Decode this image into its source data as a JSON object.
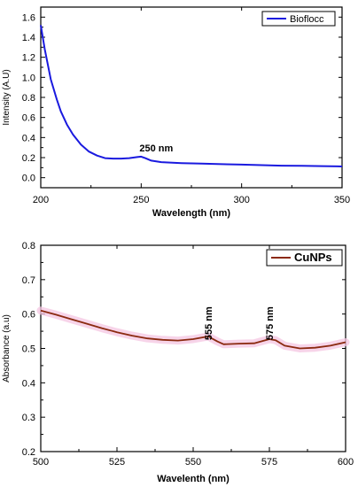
{
  "chart_data": [
    {
      "type": "line",
      "title": "",
      "xlabel": "Wavelength (nm)",
      "ylabel": "Intensity (A.U)",
      "xlim": [
        200,
        350
      ],
      "ylim": [
        -0.1,
        1.7
      ],
      "x_ticks": [
        200,
        250,
        300,
        350
      ],
      "y_ticks": [
        0.0,
        0.2,
        0.4,
        0.6,
        0.8,
        1.0,
        1.2,
        1.4,
        1.6
      ],
      "legend": {
        "placement": "top-right",
        "entries": [
          "Bioflocc"
        ]
      },
      "grid": false,
      "annotations": [
        {
          "text": "250 nm",
          "x": 250,
          "y": 0.21
        }
      ],
      "series": [
        {
          "name": "Bioflocc",
          "color": "#1a1adf",
          "x": [
            200,
            202,
            205,
            208,
            210,
            213,
            216,
            220,
            224,
            228,
            232,
            236,
            240,
            244,
            248,
            250,
            252,
            255,
            260,
            270,
            280,
            290,
            300,
            310,
            320,
            330,
            340,
            350
          ],
          "y": [
            1.52,
            1.28,
            0.98,
            0.78,
            0.66,
            0.53,
            0.43,
            0.33,
            0.26,
            0.22,
            0.195,
            0.19,
            0.19,
            0.195,
            0.205,
            0.21,
            0.195,
            0.17,
            0.155,
            0.145,
            0.14,
            0.135,
            0.13,
            0.125,
            0.12,
            0.118,
            0.115,
            0.112
          ]
        }
      ]
    },
    {
      "type": "line",
      "title": "",
      "xlabel": "Wavelenth (nm)",
      "ylabel": "Absorbance (a.u)",
      "xlim": [
        500,
        600
      ],
      "ylim": [
        0.2,
        0.8
      ],
      "x_ticks": [
        500,
        525,
        550,
        575,
        600
      ],
      "y_ticks": [
        0.2,
        0.3,
        0.4,
        0.5,
        0.6,
        0.7,
        0.8
      ],
      "legend": {
        "placement": "top-right",
        "entries": [
          "CuNPs"
        ]
      },
      "grid": false,
      "annotations": [
        {
          "text": "555 nm",
          "x": 555,
          "y": 0.555
        },
        {
          "text": "575 nm",
          "x": 575,
          "y": 0.555
        }
      ],
      "series": [
        {
          "name": "CuNPs",
          "color": "#8b2a10",
          "band_color": "#f4c6e2",
          "x": [
            500,
            505,
            510,
            515,
            520,
            525,
            530,
            535,
            540,
            545,
            550,
            555,
            556,
            558,
            560,
            565,
            570,
            575,
            577,
            580,
            585,
            590,
            595,
            600
          ],
          "y": [
            0.61,
            0.598,
            0.585,
            0.572,
            0.559,
            0.547,
            0.537,
            0.529,
            0.525,
            0.523,
            0.527,
            0.535,
            0.53,
            0.52,
            0.512,
            0.514,
            0.515,
            0.527,
            0.524,
            0.508,
            0.5,
            0.502,
            0.508,
            0.518
          ]
        }
      ]
    }
  ]
}
